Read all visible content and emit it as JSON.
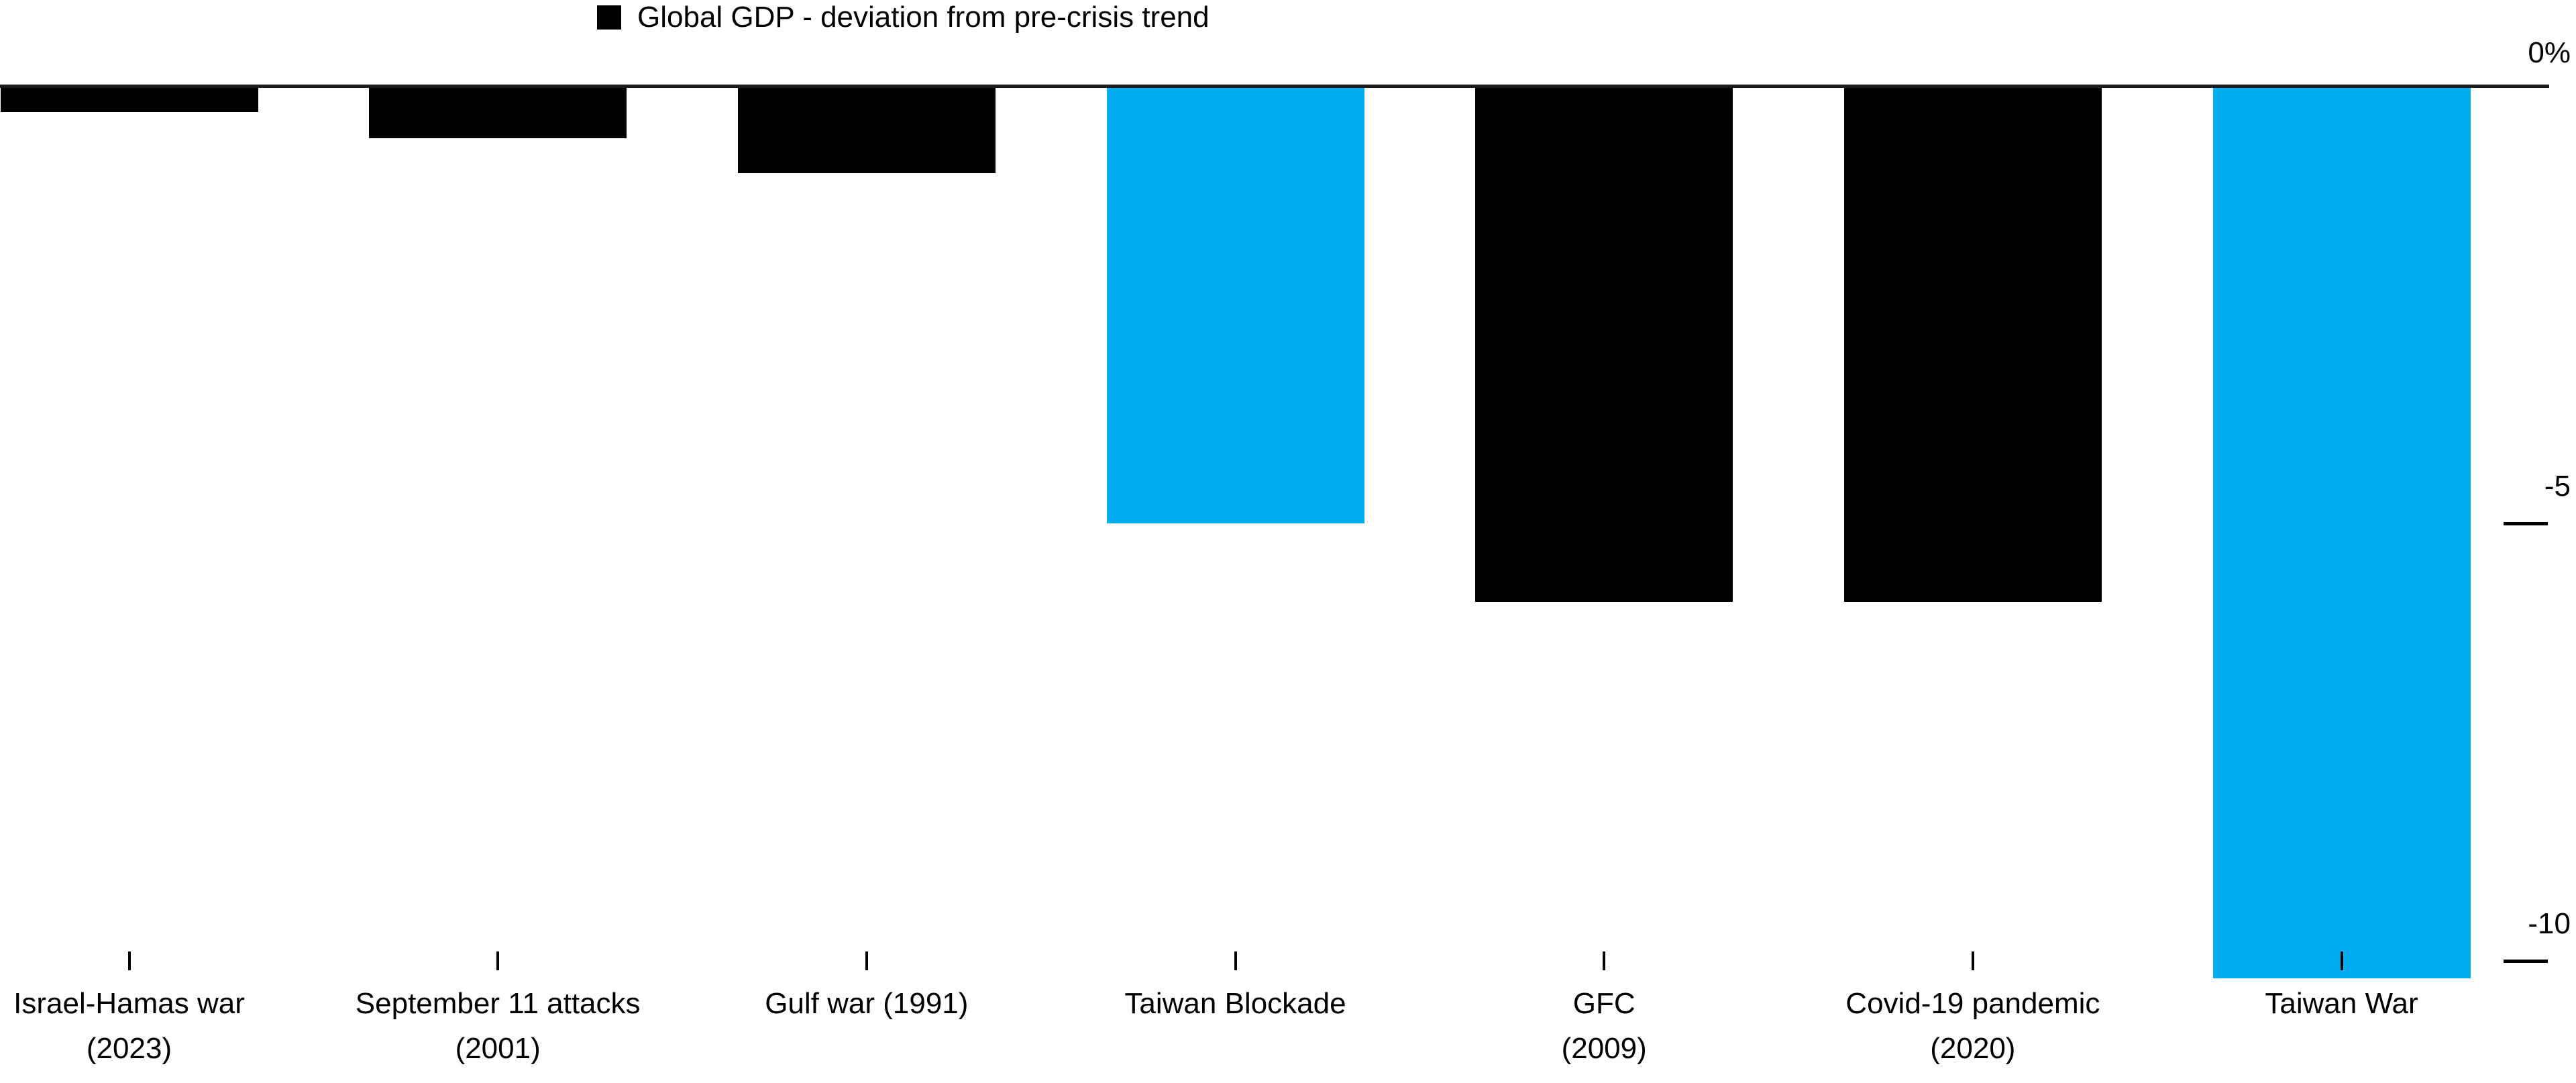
{
  "chart_data": {
    "type": "bar",
    "legend_label": "Global GDP - deviation from pre-crisis trend",
    "legend_marker_color": "#000000",
    "legend_position": "top",
    "title": "",
    "xlabel": "",
    "ylabel": "",
    "unit": "percent",
    "grid": false,
    "ylim": [
      -10.5,
      0
    ],
    "categories": [
      "Israel-Hamas war (2023)",
      "September 11 attacks (2001)",
      "Gulf war (1991)",
      "Taiwan Blockade",
      "GFC (2009)",
      "Covid-19 pandemic (2020)",
      "Taiwan War"
    ],
    "category_label_lines": [
      [
        "Israel-Hamas war",
        "(2023)"
      ],
      [
        "September 11 attacks",
        "(2001)"
      ],
      [
        "Gulf war (1991)"
      ],
      [
        "Taiwan Blockade"
      ],
      [
        "GFC",
        "(2009)"
      ],
      [
        "Covid-19 pandemic",
        "(2020)"
      ],
      [
        "Taiwan War"
      ]
    ],
    "values": [
      -0.3,
      -0.6,
      -1.0,
      -5.0,
      -5.9,
      -5.9,
      -10.2
    ],
    "bar_colors": [
      "#000000",
      "#000000",
      "#000000",
      "#00AEF0",
      "#000000",
      "#000000",
      "#00AEF0"
    ],
    "yticks": [
      {
        "value": 0,
        "label": "0%"
      },
      {
        "value": -5,
        "label": "-5"
      },
      {
        "value": -10,
        "label": "-10"
      }
    ]
  },
  "colors": {
    "highlight_blue": "#00AEF0",
    "bar_black": "#000000",
    "axis_line": "#1a1a1a",
    "background": "#ffffff"
  }
}
